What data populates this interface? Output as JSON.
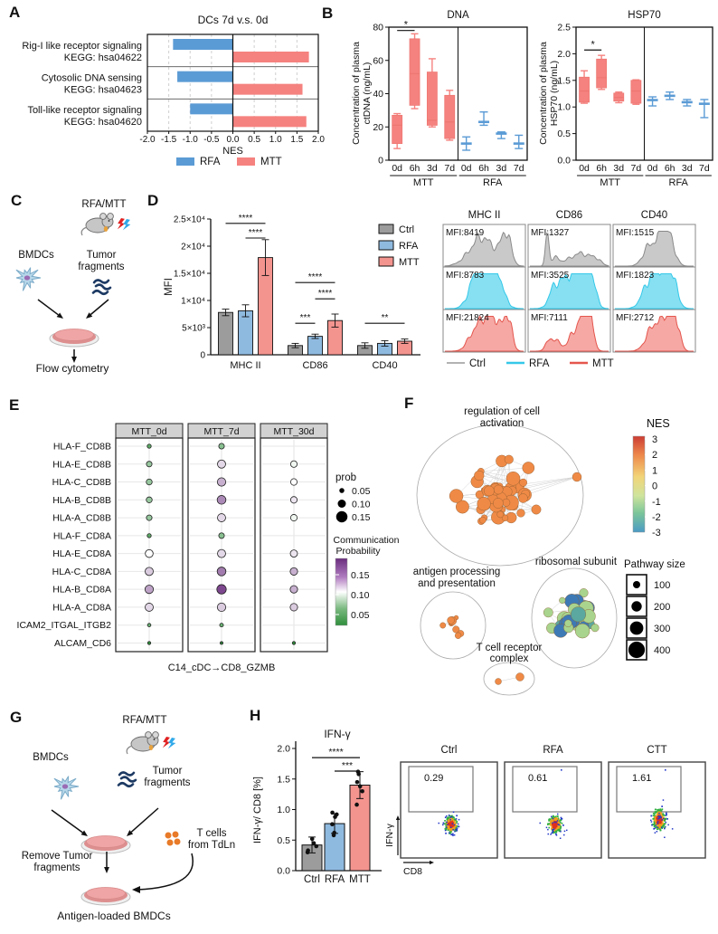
{
  "colors": {
    "rfa_blue": "#5b9bd5",
    "mtt_pink": "#f5827f",
    "bar_ctrl": "#9c9c9c",
    "bar_rfa": "#8fbae0",
    "bar_mtt": "#f4948f",
    "hist_gray_fill": "#c9c9c9",
    "hist_gray_line": "#8a8a8a",
    "hist_cyan_fill": "#86e0f2",
    "hist_cyan_line": "#35c8e8",
    "hist_pink_fill": "#f6a8a4",
    "hist_pink_line": "#e4564e",
    "dot_green": "#2f8f3c",
    "dot_purple": "#6a2d7e",
    "network_orange": "#ef8a46",
    "tumor_navy": "#1d3a63",
    "tcell_orange": "#e87a28"
  },
  "panels": {
    "A": {
      "label": "A"
    },
    "B": {
      "label": "B"
    },
    "C": {
      "label": "C",
      "rfa_mtt": "RFA/MTT",
      "bmdcs": "BMDCs",
      "tumor": [
        "Tumor",
        "fragments"
      ],
      "flow": "Flow cytometry"
    },
    "D": {
      "label": "D"
    },
    "E": {
      "label": "E"
    },
    "F": {
      "label": "F"
    },
    "G": {
      "label": "G",
      "rfa_mtt": "RFA/MTT",
      "bmdcs": "BMDCs",
      "tumor": [
        "Tumor",
        "fragments"
      ],
      "remove": [
        "Remove Tumor",
        "fragments"
      ],
      "tcells": [
        "T cells",
        "from TdLn"
      ],
      "bottom": "Antigen-loaded BMDCs"
    },
    "H": {
      "label": "H"
    }
  },
  "chart_data": [
    {
      "id": "panelA",
      "type": "bar",
      "orientation": "horizontal-diverging",
      "title": "DCs 7d v.s. 0d",
      "categories": [
        [
          "Rig-I like receptor signaling",
          "KEGG: hsa04622"
        ],
        [
          "Cytosolic DNA sensing",
          "KEGG: hsa04623"
        ],
        [
          "Toll-like receptor signaling",
          "KEGG: hsa04620"
        ]
      ],
      "series": [
        {
          "name": "RFA",
          "values": [
            -1.4,
            -1.3,
            -1.0
          ]
        },
        {
          "name": "MTT",
          "values": [
            1.78,
            1.63,
            1.72
          ]
        }
      ],
      "xlabel": "NES",
      "xlim": [
        -2,
        2
      ],
      "xticks": [
        "-2.0",
        "-1.5",
        "-1.0",
        "-0.5",
        "0.0",
        "0.5",
        "1.0",
        "1.5",
        "2.0"
      ],
      "legend": [
        "RFA",
        "MTT"
      ]
    },
    {
      "id": "panelB_dna",
      "type": "box",
      "title": "DNA",
      "ylabel_lines": [
        "Concentration of plasma",
        "ctDNA (ng/mL)"
      ],
      "ylim": [
        0,
        80
      ],
      "yticks": [
        "0",
        "20",
        "40",
        "60",
        "80"
      ],
      "xticks": [
        "0d",
        "6h",
        "3d",
        "7d"
      ],
      "groups": [
        {
          "name": "MTT",
          "style": "box",
          "boxes": [
            {
              "x": "0d",
              "lo": 7,
              "q1": 10,
              "med": 21,
              "q3": 27,
              "hi": 28
            },
            {
              "x": "6h",
              "lo": 31,
              "q1": 33,
              "med": 52,
              "q3": 73,
              "hi": 76
            },
            {
              "x": "3d",
              "lo": 20,
              "q1": 21,
              "med": 24,
              "q3": 53,
              "hi": 61
            },
            {
              "x": "7d",
              "lo": 12,
              "q1": 13,
              "med": 23,
              "q3": 39,
              "hi": 42
            }
          ]
        },
        {
          "name": "RFA",
          "style": "whisker",
          "boxes": [
            {
              "x": "0d",
              "lo": 6,
              "med": 10,
              "hi": 14
            },
            {
              "x": "6h",
              "lo": 21,
              "med": 23,
              "hi": 29
            },
            {
              "x": "3d",
              "lo": 13,
              "med": 16,
              "hi": 17
            },
            {
              "x": "7d",
              "lo": 7,
              "med": 10,
              "hi": 15
            }
          ]
        }
      ],
      "sig": {
        "label": "*",
        "group": 0,
        "i1": 0,
        "i2": 1,
        "y": 78
      }
    },
    {
      "id": "panelB_hsp70",
      "type": "box",
      "title": "HSP70",
      "ylabel_lines": [
        "Concentration of plasma",
        "HSP70 (ng/mL)"
      ],
      "ylim": [
        0,
        2.5
      ],
      "yticks": [
        "0.0",
        "0.5",
        "1.0",
        "1.5",
        "2.0",
        "2.5"
      ],
      "xticks": [
        "0d",
        "6h",
        "3d",
        "7d"
      ],
      "groups": [
        {
          "name": "MTT",
          "style": "box",
          "boxes": [
            {
              "x": "0d",
              "lo": 1.07,
              "q1": 1.09,
              "med": 1.3,
              "q3": 1.56,
              "hi": 1.68
            },
            {
              "x": "6h",
              "lo": 1.33,
              "q1": 1.36,
              "med": 1.55,
              "q3": 1.9,
              "hi": 1.97
            },
            {
              "x": "3d",
              "lo": 1.08,
              "q1": 1.11,
              "med": 1.18,
              "q3": 1.26,
              "hi": 1.28
            },
            {
              "x": "7d",
              "lo": 1.05,
              "q1": 1.07,
              "med": 1.3,
              "q3": 1.5,
              "hi": 1.51
            }
          ]
        },
        {
          "name": "RFA",
          "style": "whisker",
          "boxes": [
            {
              "x": "0d",
              "lo": 1.02,
              "med": 1.13,
              "hi": 1.19
            },
            {
              "x": "6h",
              "lo": 1.14,
              "med": 1.21,
              "hi": 1.28
            },
            {
              "x": "3d",
              "lo": 1.02,
              "med": 1.09,
              "hi": 1.14
            },
            {
              "x": "7d",
              "lo": 0.8,
              "med": 1.06,
              "hi": 1.14
            }
          ]
        }
      ],
      "sig": {
        "label": "*",
        "group": 0,
        "i1": 0,
        "i2": 1,
        "y": 2.07
      }
    },
    {
      "id": "panelD_bar",
      "type": "bar",
      "ylabel": "MFI",
      "categories": [
        "MHC II",
        "CD86",
        "CD40"
      ],
      "ylim": [
        0,
        25000
      ],
      "yticks": [
        {
          "v": 0,
          "label": "0"
        },
        {
          "v": 5000,
          "label": "5×10³"
        },
        {
          "v": 10000,
          "label": "1×10⁴"
        },
        {
          "v": 15000,
          "label": "1.5×10⁴"
        },
        {
          "v": 20000,
          "label": "2×10⁴"
        },
        {
          "v": 25000,
          "label": "2.5×10⁴"
        }
      ],
      "series": [
        {
          "name": "Ctrl",
          "values": [
            7800,
            1700,
            1700
          ],
          "err": [
            600,
            400,
            500
          ]
        },
        {
          "name": "RFA",
          "values": [
            8100,
            3400,
            2100
          ],
          "err": [
            1100,
            400,
            500
          ]
        },
        {
          "name": "MTT",
          "values": [
            17900,
            6300,
            2500
          ],
          "err": [
            3300,
            1200,
            400
          ]
        }
      ],
      "sig": [
        {
          "cat": 0,
          "s1": 0,
          "s2": 2,
          "y": 24200,
          "label": "****"
        },
        {
          "cat": 0,
          "s1": 1,
          "s2": 2,
          "y": 21500,
          "label": "****"
        },
        {
          "cat": 1,
          "s1": 0,
          "s2": 2,
          "y": 13300,
          "label": "****"
        },
        {
          "cat": 1,
          "s1": 1,
          "s2": 2,
          "y": 10300,
          "label": "****"
        },
        {
          "cat": 1,
          "s1": 0,
          "s2": 1,
          "y": 5800,
          "label": "***"
        },
        {
          "cat": 2,
          "s1": 0,
          "s2": 2,
          "y": 5800,
          "label": "**"
        }
      ],
      "legend": [
        "Ctrl",
        "RFA",
        "MTT"
      ]
    },
    {
      "id": "panelD_hist",
      "type": "histogram-grid",
      "columns": [
        "MHC II",
        "CD86",
        "CD40"
      ],
      "rows": [
        "Ctrl",
        "RFA",
        "MTT"
      ],
      "mfi": [
        [
          "MFI:8419",
          "MFI:1327",
          "MFI:1515"
        ],
        [
          "MFI:8783",
          "MFI:3525",
          "MFI:1823"
        ],
        [
          "MFI:21824",
          "MFI:7111",
          "MFI:2712"
        ]
      ],
      "legend": [
        "Ctrl",
        "RFA",
        "MTT"
      ]
    },
    {
      "id": "panelE",
      "type": "dotplot",
      "columns": [
        "MTT_0d",
        "MTT_7d",
        "MTT_30d"
      ],
      "rows": [
        "HLA-F_CD8B",
        "HLA-E_CD8B",
        "HLA-C_CD8B",
        "HLA-B_CD8B",
        "HLA-A_CD8B",
        "HLA-F_CD8A",
        "HLA-E_CD8A",
        "HLA-C_CD8A",
        "HLA-B_CD8A",
        "HLA-A_CD8A",
        "ICAM2_ITGAL_ITGB2",
        "ALCAM_CD6"
      ],
      "xlabel": "C14_cDC→CD8_GZMB",
      "values": [
        [
          [
            0.035,
            0.045
          ],
          [
            0.06,
            0.06
          ],
          null
        ],
        [
          [
            0.06,
            0.065
          ],
          [
            0.1,
            0.115
          ],
          [
            0.075,
            0.095
          ]
        ],
        [
          [
            0.065,
            0.065
          ],
          [
            0.105,
            0.13
          ],
          [
            0.075,
            0.1
          ]
        ],
        [
          [
            0.065,
            0.065
          ],
          [
            0.11,
            0.145
          ],
          [
            0.075,
            0.11
          ]
        ],
        [
          [
            0.06,
            0.065
          ],
          [
            0.1,
            0.115
          ],
          [
            0.075,
            0.095
          ]
        ],
        [
          [
            0.035,
            0.045
          ],
          [
            0.06,
            0.06
          ],
          null
        ],
        [
          [
            0.095,
            0.1
          ],
          [
            0.1,
            0.115
          ],
          [
            0.085,
            0.11
          ]
        ],
        [
          [
            0.1,
            0.12
          ],
          [
            0.11,
            0.15
          ],
          [
            0.09,
            0.13
          ]
        ],
        [
          [
            0.105,
            0.135
          ],
          [
            0.12,
            0.17
          ],
          [
            0.09,
            0.13
          ]
        ],
        [
          [
            0.1,
            0.115
          ],
          [
            0.105,
            0.12
          ],
          [
            0.09,
            0.12
          ]
        ],
        [
          [
            0.025,
            0.05
          ],
          [
            0.03,
            0.05
          ],
          null
        ],
        [
          [
            0.02,
            0.03
          ],
          [
            0.015,
            0.03
          ],
          [
            0.02,
            0.03
          ]
        ]
      ],
      "size_legend": {
        "title": "prob",
        "items": [
          "0.05",
          "0.10",
          "0.15"
        ]
      },
      "color_legend": {
        "title_lines": [
          "Communication",
          "Probability"
        ],
        "ticks": [
          "0.15",
          "0.10",
          "0.05"
        ]
      }
    },
    {
      "id": "panelF",
      "type": "network",
      "clusters": [
        {
          "label_lines": [
            "regulation of cell",
            "activation"
          ],
          "n": 52,
          "palette": "orange"
        },
        {
          "label_lines": [
            "antigen processing",
            "and presentation"
          ],
          "n": 8,
          "palette": "orange"
        },
        {
          "label_lines": [
            "ribosomal subunit"
          ],
          "n": 28,
          "palette": "green-blue"
        },
        {
          "label_lines": [
            "T cell receptor",
            "complex"
          ],
          "n": 2,
          "palette": "orange"
        }
      ],
      "color_legend": {
        "title": "NES",
        "ticks": [
          "3",
          "2",
          "1",
          "0",
          "-1",
          "-2",
          "-3"
        ]
      },
      "size_legend": {
        "title": "Pathway size",
        "items": [
          "100",
          "200",
          "300",
          "400"
        ]
      }
    },
    {
      "id": "panelH_bar",
      "type": "bar",
      "title": "IFN-γ",
      "ylabel": "IFN-γ/ CD8 [%]",
      "ylim": [
        0,
        2.0
      ],
      "yticks": [
        "0.0",
        "0.5",
        "1.0",
        "1.5",
        "2.0"
      ],
      "categories": [
        "Ctrl",
        "RFA",
        "MTT"
      ],
      "values": [
        0.42,
        0.77,
        1.4
      ],
      "err": [
        0.13,
        0.16,
        0.22
      ],
      "points": [
        [
          0.3,
          0.33,
          0.4,
          0.45,
          0.52
        ],
        [
          0.58,
          0.62,
          0.76,
          0.88,
          0.92,
          0.95
        ],
        [
          1.08,
          1.3,
          1.38,
          1.45,
          1.58,
          1.62
        ]
      ],
      "sig": [
        {
          "s1": 0,
          "s2": 2,
          "y": 1.85,
          "label": "****"
        },
        {
          "s1": 1,
          "s2": 2,
          "y": 1.63,
          "label": "***"
        }
      ]
    },
    {
      "id": "panelH_flow",
      "type": "flow-cytometry",
      "plots": [
        {
          "title": "Ctrl",
          "gate_value": "0.29"
        },
        {
          "title": "RFA",
          "gate_value": "0.61"
        },
        {
          "title": "CTT",
          "gate_value": "1.61"
        }
      ],
      "xaxis": "CD8",
      "yaxis": "IFN-γ"
    }
  ]
}
